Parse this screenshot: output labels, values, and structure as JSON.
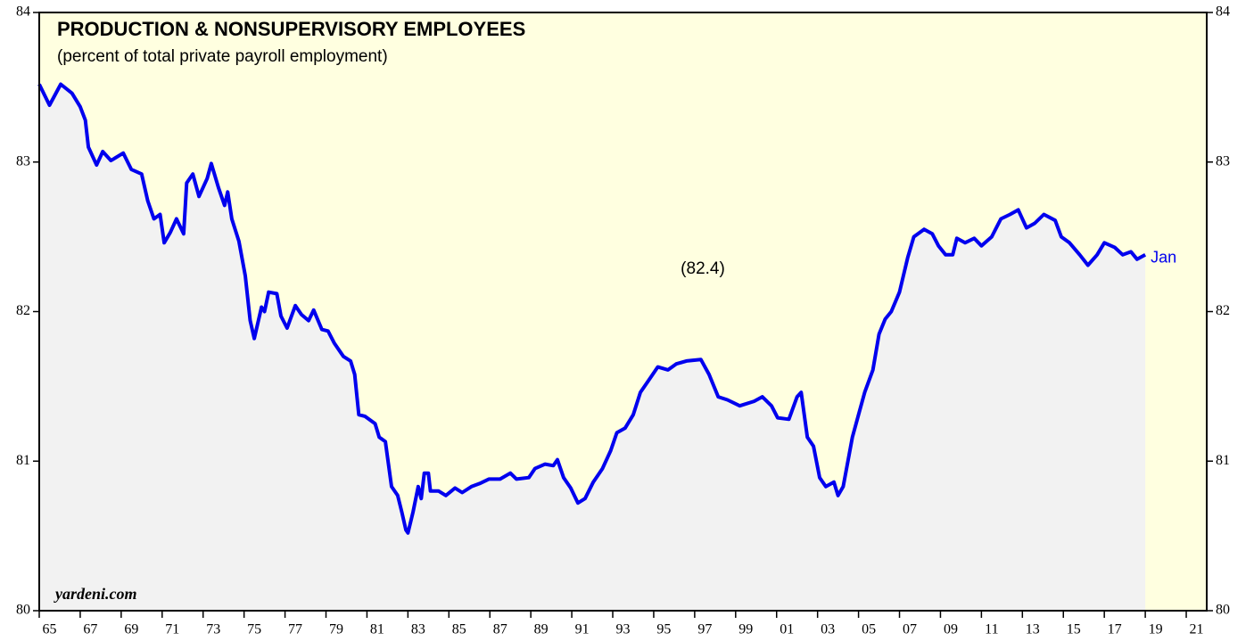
{
  "chart_data": {
    "type": "line",
    "title": "PRODUCTION & NONSUPERVISORY EMPLOYEES",
    "subtitle": "(percent of total private payroll employment)",
    "annotations": [
      "(82.4)",
      "Jan",
      "yardeni.com"
    ],
    "x": [
      1965.0,
      1965.5,
      1966.05,
      1966.6,
      1967.0,
      1967.25,
      1967.4,
      1967.8,
      1968.1,
      1968.5,
      1969.1,
      1969.5,
      1970.0,
      1970.3,
      1970.6,
      1970.9,
      1971.1,
      1971.4,
      1971.7,
      1972.05,
      1972.2,
      1972.5,
      1972.8,
      1973.2,
      1973.4,
      1973.75,
      1974.05,
      1974.2,
      1974.4,
      1974.75,
      1975.06,
      1975.3,
      1975.5,
      1975.85,
      1976.0,
      1976.2,
      1976.6,
      1976.8,
      1977.1,
      1977.5,
      1977.8,
      1978.15,
      1978.4,
      1978.8,
      1979.1,
      1979.4,
      1979.85,
      1980.2,
      1980.4,
      1980.6,
      1980.9,
      1981.4,
      1981.6,
      1981.9,
      1982.2,
      1982.5,
      1982.7,
      1982.9,
      1983.0,
      1983.25,
      1983.5,
      1983.65,
      1983.8,
      1984.0,
      1984.1,
      1984.5,
      1984.85,
      1985.3,
      1985.65,
      1986.1,
      1986.5,
      1986.95,
      1987.5,
      1988.0,
      1988.3,
      1988.9,
      1989.2,
      1989.7,
      1990.1,
      1990.3,
      1990.6,
      1990.95,
      1991.3,
      1991.65,
      1992.05,
      1992.5,
      1992.9,
      1993.2,
      1993.6,
      1994.0,
      1994.35,
      1994.8,
      1995.2,
      1995.7,
      1996.1,
      1996.6,
      1997.3,
      1997.7,
      1998.15,
      1998.6,
      1999.2,
      1999.9,
      2000.3,
      2000.75,
      2001.05,
      2001.6,
      2002.0,
      2002.2,
      2002.5,
      2002.8,
      2003.1,
      2003.4,
      2003.8,
      2004.0,
      2004.25,
      2004.7,
      2005.0,
      2005.3,
      2005.7,
      2006.0,
      2006.3,
      2006.6,
      2007.0,
      2007.4,
      2007.7,
      2008.2,
      2008.6,
      2008.9,
      2009.25,
      2009.6,
      2009.8,
      2010.2,
      2010.65,
      2011.0,
      2011.5,
      2011.95,
      2012.4,
      2012.8,
      2013.2,
      2013.6,
      2014.05,
      2014.6,
      2014.9,
      2015.3,
      2015.8,
      2016.2,
      2016.65,
      2017.0,
      2017.5,
      2017.9,
      2018.3,
      2018.6,
      2019.0
    ],
    "series": [
      {
        "name": "Production & nonsupervisory employees",
        "color": "#0000ee",
        "values": [
          83.52,
          83.38,
          83.52,
          83.46,
          83.37,
          83.28,
          83.1,
          82.98,
          83.07,
          83.01,
          83.06,
          82.95,
          82.92,
          82.74,
          82.62,
          82.65,
          82.46,
          82.53,
          82.62,
          82.52,
          82.86,
          82.92,
          82.77,
          82.89,
          82.99,
          82.83,
          82.71,
          82.8,
          82.62,
          82.47,
          82.24,
          81.94,
          81.82,
          82.03,
          82.0,
          82.13,
          82.12,
          81.97,
          81.89,
          82.04,
          81.98,
          81.94,
          82.01,
          81.88,
          81.87,
          81.79,
          81.7,
          81.67,
          81.58,
          81.31,
          81.3,
          81.25,
          81.16,
          81.13,
          80.83,
          80.77,
          80.66,
          80.54,
          80.52,
          80.66,
          80.83,
          80.75,
          80.92,
          80.92,
          80.8,
          80.8,
          80.77,
          80.82,
          80.79,
          80.83,
          80.85,
          80.88,
          80.88,
          80.92,
          80.88,
          80.89,
          80.95,
          80.98,
          80.97,
          81.01,
          80.89,
          80.82,
          80.72,
          80.75,
          80.86,
          80.95,
          81.07,
          81.19,
          81.22,
          81.31,
          81.46,
          81.55,
          81.63,
          81.61,
          81.65,
          81.67,
          81.68,
          81.58,
          81.43,
          81.41,
          81.37,
          81.4,
          81.43,
          81.37,
          81.29,
          81.28,
          81.43,
          81.46,
          81.16,
          81.1,
          80.89,
          80.83,
          80.86,
          80.77,
          80.83,
          81.16,
          81.31,
          81.46,
          81.61,
          81.85,
          81.95,
          82.0,
          82.13,
          82.36,
          82.5,
          82.55,
          82.52,
          82.44,
          82.38,
          82.38,
          82.49,
          82.46,
          82.49,
          82.44,
          82.5,
          82.62,
          82.65,
          82.68,
          82.56,
          82.59,
          82.65,
          82.61,
          82.5,
          82.46,
          82.38,
          82.31,
          82.38,
          82.46,
          82.43,
          82.38,
          82.4,
          82.35,
          82.38
        ]
      }
    ],
    "xlim": [
      1965,
      2022
    ],
    "xticks": [
      {
        "value": 1965,
        "label": "65"
      },
      {
        "value": 1967,
        "label": "67"
      },
      {
        "value": 1969,
        "label": "69"
      },
      {
        "value": 1971,
        "label": "71"
      },
      {
        "value": 1973,
        "label": "73"
      },
      {
        "value": 1975,
        "label": "75"
      },
      {
        "value": 1977,
        "label": "77"
      },
      {
        "value": 1979,
        "label": "79"
      },
      {
        "value": 1981,
        "label": "81"
      },
      {
        "value": 1983,
        "label": "83"
      },
      {
        "value": 1985,
        "label": "85"
      },
      {
        "value": 1987,
        "label": "87"
      },
      {
        "value": 1989,
        "label": "89"
      },
      {
        "value": 1991,
        "label": "91"
      },
      {
        "value": 1993,
        "label": "93"
      },
      {
        "value": 1995,
        "label": "95"
      },
      {
        "value": 1997,
        "label": "97"
      },
      {
        "value": 1999,
        "label": "99"
      },
      {
        "value": 2001,
        "label": "01"
      },
      {
        "value": 2003,
        "label": "03"
      },
      {
        "value": 2005,
        "label": "05"
      },
      {
        "value": 2007,
        "label": "07"
      },
      {
        "value": 2009,
        "label": "09"
      },
      {
        "value": 2011,
        "label": "11"
      },
      {
        "value": 2013,
        "label": "13"
      },
      {
        "value": 2015,
        "label": "15"
      },
      {
        "value": 2017,
        "label": "17"
      },
      {
        "value": 2019,
        "label": "19"
      },
      {
        "value": 2021,
        "label": "21"
      }
    ],
    "ylim": [
      80,
      84
    ],
    "yticks": [
      80,
      81,
      82,
      83,
      84
    ],
    "background": "#ffffe0",
    "area_color": "#f2f2f2"
  }
}
